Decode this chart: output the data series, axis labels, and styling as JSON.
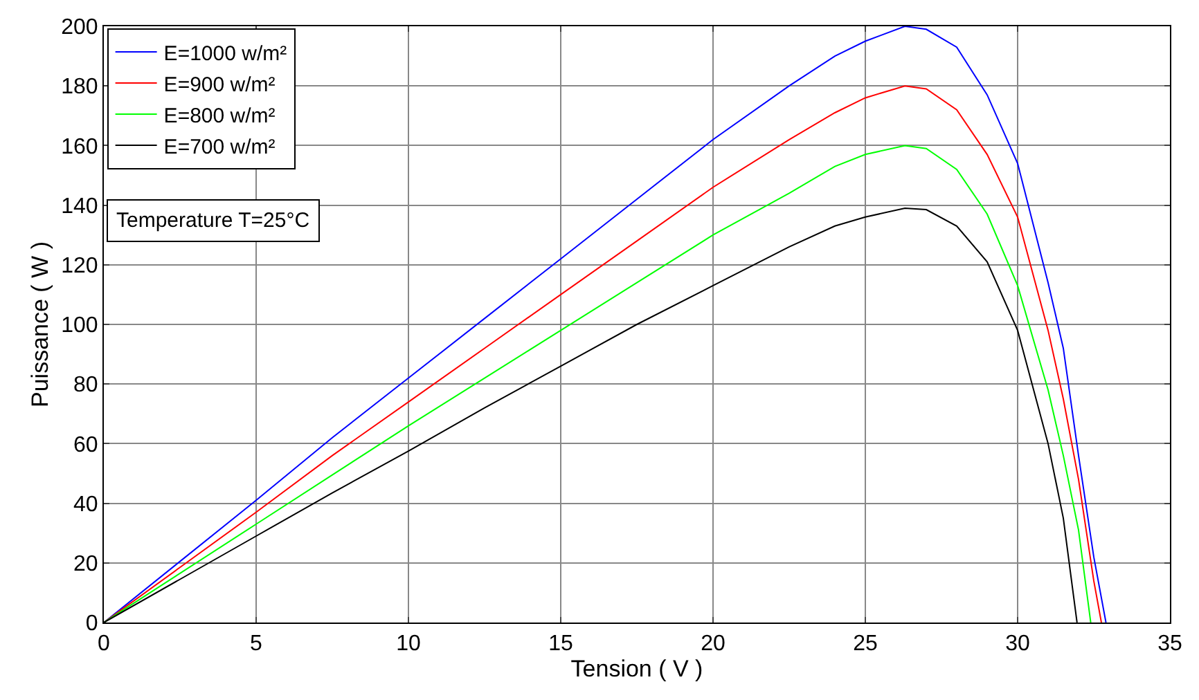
{
  "chart_data": {
    "type": "line",
    "xlabel": "Tension ( V )",
    "ylabel": "Puissance ( W )",
    "xlim": [
      0,
      35
    ],
    "xticks": [
      0,
      5,
      10,
      15,
      20,
      25,
      30,
      35
    ],
    "ylim": [
      0,
      200
    ],
    "yticks": [
      0,
      20,
      40,
      60,
      80,
      100,
      120,
      140,
      160,
      180,
      200
    ],
    "grid": true,
    "legend": "top left",
    "marker": "none",
    "line_style": "solid",
    "annotations": [
      "Temperature T=25°C"
    ],
    "series": [
      {
        "name": "E=1000 w/m²",
        "color": "#0000ff",
        "x": [
          0,
          2.5,
          5,
          7.5,
          10,
          12.5,
          15,
          17.5,
          20,
          22.5,
          24,
          25,
          26.3,
          27,
          28,
          29,
          30,
          31,
          31.5,
          32,
          32.5,
          32.9
        ],
        "values": [
          0,
          20.5,
          41,
          62,
          82,
          102,
          122,
          142,
          162,
          180,
          190,
          195,
          200,
          199,
          193,
          177,
          154,
          114,
          92,
          56,
          22,
          0
        ]
      },
      {
        "name": "E=900 w/m²",
        "color": "#ff0000",
        "x": [
          0,
          2.5,
          5,
          7.5,
          10,
          12.5,
          15,
          17.5,
          20,
          22.5,
          24,
          25,
          26.3,
          27,
          28,
          29,
          30,
          31,
          31.5,
          32,
          32.5,
          32.75
        ],
        "values": [
          0,
          18.5,
          37,
          56,
          74,
          92,
          110,
          128,
          146,
          162,
          171,
          176,
          180,
          179,
          172,
          157,
          136,
          98,
          75,
          48,
          14,
          0
        ]
      },
      {
        "name": "E=800 w/m²",
        "color": "#00ff00",
        "x": [
          0,
          2.5,
          5,
          7.5,
          10,
          12.5,
          15,
          17.5,
          20,
          22.5,
          24,
          25,
          26.3,
          27,
          28,
          29,
          30,
          31,
          31.5,
          32,
          32.4
        ],
        "values": [
          0,
          16.5,
          33,
          49.5,
          66,
          82,
          98,
          114,
          130,
          144,
          153,
          157,
          160,
          159,
          152,
          137,
          113,
          78,
          56,
          31,
          0
        ]
      },
      {
        "name": "E=700 w/m²",
        "color": "#000000",
        "x": [
          0,
          2.5,
          5,
          7.5,
          10,
          12.5,
          15,
          17.5,
          20,
          22.5,
          24,
          25,
          26.3,
          27,
          28,
          29,
          30,
          31,
          31.5,
          31.95
        ],
        "values": [
          0,
          14.5,
          29,
          43.5,
          57.5,
          72,
          86,
          100,
          113,
          126,
          133,
          136,
          139,
          138.5,
          133,
          121,
          98,
          60,
          35,
          0
        ]
      }
    ]
  }
}
